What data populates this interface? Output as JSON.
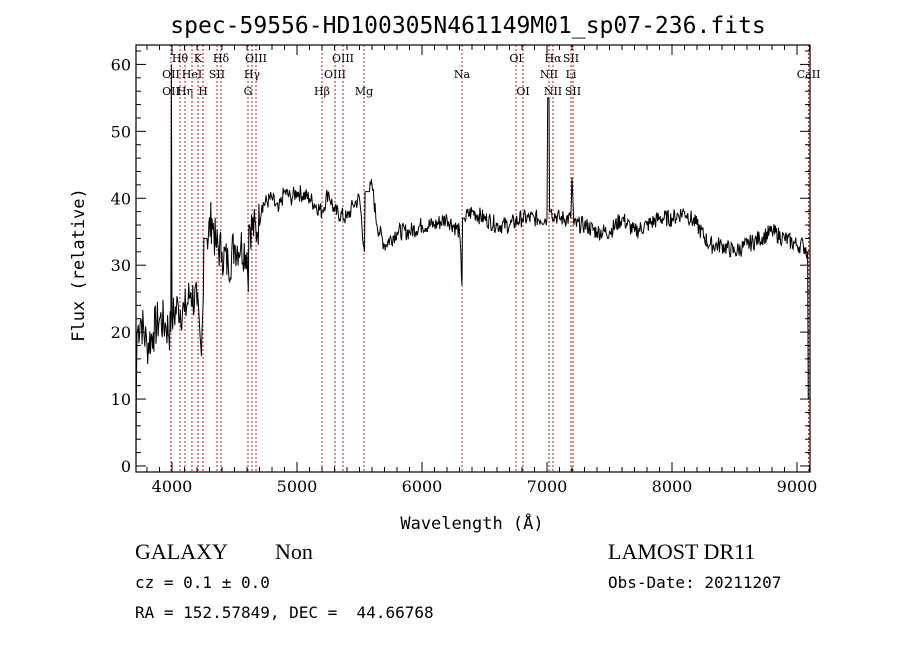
{
  "chart_data": {
    "type": "line",
    "title": "spec-59556-HD100305N461149M01_sp07-236.fits",
    "xlabel": "Wavelength (Å)",
    "ylabel": "Flux (relative)",
    "xlim": [
      3712,
      9104
    ],
    "ylim": [
      -0.9,
      62.9
    ],
    "xticks": [
      4000,
      5000,
      6000,
      7000,
      8000,
      9000
    ],
    "yticks": [
      0,
      10,
      20,
      30,
      40,
      50,
      60
    ],
    "grid": false,
    "series": [
      {
        "name": "spectrum",
        "points": [
          [
            3712,
            0
          ],
          [
            3714,
            10
          ],
          [
            3720,
            20
          ],
          [
            3750,
            22
          ],
          [
            3800,
            18
          ],
          [
            3850,
            20
          ],
          [
            3900,
            22
          ],
          [
            3950,
            21
          ],
          [
            3990,
            20
          ],
          [
            3995,
            60
          ],
          [
            4000,
            22
          ],
          [
            4050,
            24
          ],
          [
            4100,
            23
          ],
          [
            4150,
            26
          ],
          [
            4200,
            24
          ],
          [
            4230,
            18
          ],
          [
            4250,
            25
          ],
          [
            4280,
            34
          ],
          [
            4320,
            37
          ],
          [
            4350,
            33
          ],
          [
            4400,
            32
          ],
          [
            4450,
            30
          ],
          [
            4500,
            33
          ],
          [
            4550,
            33
          ],
          [
            4600,
            32
          ],
          [
            4610,
            26
          ],
          [
            4620,
            36
          ],
          [
            4680,
            35
          ],
          [
            4720,
            39
          ],
          [
            4800,
            40
          ],
          [
            4850,
            38
          ],
          [
            4900,
            41
          ],
          [
            4950,
            40
          ],
          [
            5000,
            41
          ],
          [
            5100,
            40
          ],
          [
            5200,
            38
          ],
          [
            5250,
            41
          ],
          [
            5300,
            38
          ],
          [
            5400,
            37
          ],
          [
            5450,
            39
          ],
          [
            5500,
            40
          ],
          [
            5540,
            32
          ],
          [
            5580,
            41
          ],
          [
            5600,
            42
          ],
          [
            5640,
            36
          ],
          [
            5700,
            33
          ],
          [
            5800,
            35
          ],
          [
            5900,
            35
          ],
          [
            6000,
            36
          ],
          [
            6100,
            36
          ],
          [
            6200,
            37
          ],
          [
            6300,
            35
          ],
          [
            6320,
            27
          ],
          [
            6340,
            37
          ],
          [
            6400,
            38
          ],
          [
            6500,
            37
          ],
          [
            6600,
            36
          ],
          [
            6700,
            36
          ],
          [
            6800,
            37
          ],
          [
            6900,
            37
          ],
          [
            7000,
            37
          ],
          [
            7016,
            55
          ],
          [
            7030,
            38
          ],
          [
            7100,
            37
          ],
          [
            7190,
            37
          ],
          [
            7200,
            43
          ],
          [
            7215,
            36
          ],
          [
            7300,
            36
          ],
          [
            7400,
            35
          ],
          [
            7500,
            35
          ],
          [
            7600,
            37
          ],
          [
            7700,
            35
          ],
          [
            7800,
            36
          ],
          [
            7900,
            37
          ],
          [
            8000,
            37
          ],
          [
            8100,
            38
          ],
          [
            8200,
            36
          ],
          [
            8300,
            33
          ],
          [
            8400,
            33
          ],
          [
            8500,
            32
          ],
          [
            8600,
            33
          ],
          [
            8700,
            34
          ],
          [
            8800,
            35
          ],
          [
            8900,
            34
          ],
          [
            9000,
            33
          ],
          [
            9050,
            33
          ],
          [
            9085,
            32
          ],
          [
            9090,
            10
          ]
        ]
      }
    ],
    "line_markers": [
      {
        "label": "OII",
        "wavelength": 3992,
        "row": 1
      },
      {
        "label": "OII",
        "wavelength": 3992,
        "row": 2
      },
      {
        "label": "Hθ",
        "wavelength": 4064,
        "row": 0
      },
      {
        "label": "Hη",
        "wavelength": 4104,
        "row": 2
      },
      {
        "label": "HeI",
        "wavelength": 4160,
        "row": 1
      },
      {
        "label": "K",
        "wavelength": 4208,
        "row": 0
      },
      {
        "label": "H",
        "wavelength": 4248,
        "row": 2
      },
      {
        "label": "SII",
        "wavelength": 4360,
        "row": 1
      },
      {
        "label": "Hδ",
        "wavelength": 4392,
        "row": 0
      },
      {
        "label": "G",
        "wavelength": 4608,
        "row": 2
      },
      {
        "label": "Hγ",
        "wavelength": 4640,
        "row": 1
      },
      {
        "label": "OIII",
        "wavelength": 4672,
        "row": 0
      },
      {
        "label": "Hβ",
        "wavelength": 5200,
        "row": 2
      },
      {
        "label": "OIII",
        "wavelength": 5304,
        "row": 1
      },
      {
        "label": "OIII",
        "wavelength": 5368,
        "row": 0
      },
      {
        "label": "Mg",
        "wavelength": 5536,
        "row": 2
      },
      {
        "label": "Na",
        "wavelength": 6320,
        "row": 1
      },
      {
        "label": "OI",
        "wavelength": 6752,
        "row": 0
      },
      {
        "label": "OI",
        "wavelength": 6808,
        "row": 2
      },
      {
        "label": "NII",
        "wavelength": 7016,
        "row": 1
      },
      {
        "label": "Hα",
        "wavelength": 7048,
        "row": 0
      },
      {
        "label": "NII",
        "wavelength": 7048,
        "row": 2
      },
      {
        "label": "Li",
        "wavelength": 7192,
        "row": 1
      },
      {
        "label": "SII",
        "wavelength": 7192,
        "row": 0
      },
      {
        "label": "SII",
        "wavelength": 7208,
        "row": 2
      },
      {
        "label": "CaII",
        "wavelength": 9093,
        "row": 1
      }
    ],
    "colors": {
      "spectrum": "#000000",
      "markers": "#b22222"
    }
  },
  "info": {
    "class": "GALAXY",
    "subclass": "Non",
    "survey": "LAMOST DR11",
    "cz": "cz = 0.1 ± 0.0",
    "obs_date": "Obs-Date: 20211207",
    "coords": "RA = 152.57849, DEC =  44.66768"
  }
}
